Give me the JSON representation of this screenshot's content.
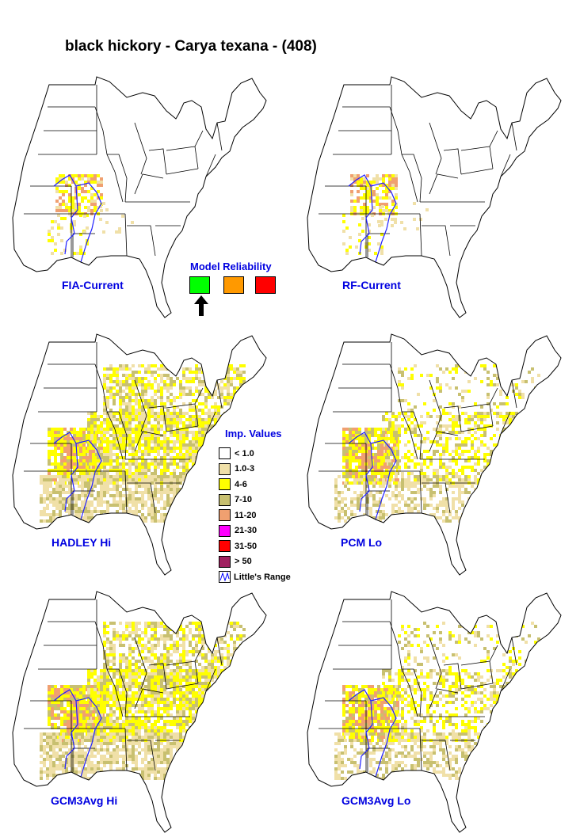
{
  "title": "black hickory - Carya texana - (408)",
  "maps": [
    {
      "label": "FIA-Current",
      "scenario": "current"
    },
    {
      "label": "RF-Current",
      "scenario": "current"
    },
    {
      "label": "HADLEY Hi",
      "scenario": "future-high"
    },
    {
      "label": "PCM Lo",
      "scenario": "future-low"
    },
    {
      "label": "GCM3Avg Hi",
      "scenario": "future-high"
    },
    {
      "label": "GCM3Avg Lo",
      "scenario": "future-low"
    }
  ],
  "model_reliability": {
    "title": "Model Reliability",
    "levels": [
      {
        "color": "#00ff00",
        "selected": true
      },
      {
        "color": "#ff9900",
        "selected": false
      },
      {
        "color": "#ff0000",
        "selected": false
      }
    ],
    "indicator_icon": "arrow-up-icon"
  },
  "legend": {
    "title": "Imp. Values",
    "items": [
      {
        "label": "< 1.0",
        "color": "#ffffff"
      },
      {
        "label": "1.0-3",
        "color": "#f0e0a8"
      },
      {
        "label": "4-6",
        "color": "#ffff00"
      },
      {
        "label": "7-10",
        "color": "#c8c070"
      },
      {
        "label": "11-20",
        "color": "#f0a070"
      },
      {
        "label": "21-30",
        "color": "#ff00ff"
      },
      {
        "label": "31-50",
        "color": "#ff0000"
      },
      {
        "label": "> 50",
        "color": "#a02060"
      }
    ],
    "range_label": "Little's Range",
    "range_color": "#0000ff"
  }
}
